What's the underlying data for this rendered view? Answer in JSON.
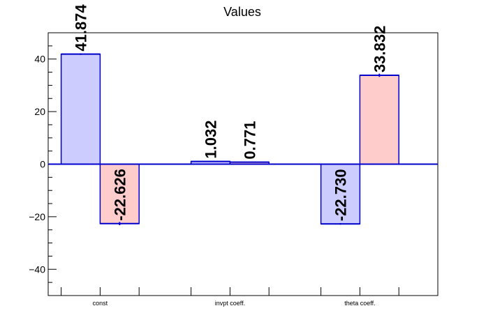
{
  "chart_data": {
    "type": "bar",
    "title": "Values",
    "categories": [
      "const",
      "invpt coeff.",
      "theta coeff."
    ],
    "series": [
      {
        "values": [
          41.874,
          1.032,
          -22.73
        ],
        "errors": [
          0.3,
          0.1,
          0.3
        ],
        "color": "#ccccff"
      },
      {
        "values": [
          -22.626,
          0.771,
          33.832
        ],
        "errors": [
          0.6,
          0.1,
          0.6
        ],
        "color": "#ffcccc"
      }
    ],
    "data_labels": [
      [
        "41.874",
        "1.032",
        "-22.730"
      ],
      [
        "-22.626",
        "0.771",
        "33.832"
      ]
    ],
    "ylim": [
      -50,
      50
    ],
    "yticks": [
      -40,
      -20,
      0,
      20,
      40
    ],
    "ytick_labels": [
      "−40",
      "−20",
      "0",
      "20",
      "40"
    ],
    "edge_color": "#0000cc",
    "axis_color": "#000000",
    "grid": false,
    "legend": "none"
  }
}
